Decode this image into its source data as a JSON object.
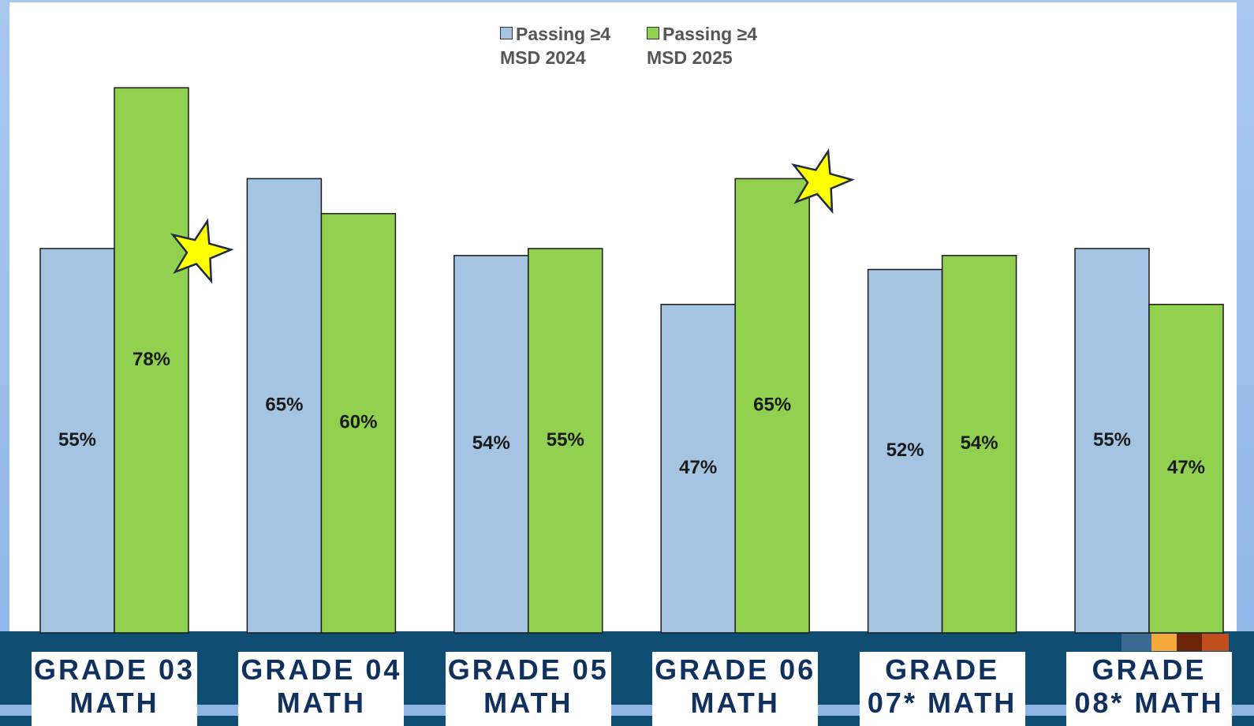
{
  "chart_data": {
    "type": "bar",
    "categories": [
      "GRADE 03 MATH",
      "GRADE 04 MATH",
      "GRADE 05 MATH",
      "GRADE 06 MATH",
      "GRADE 07* MATH",
      "GRADE 08* MATH"
    ],
    "series": [
      {
        "name": "Passing ≥4 MSD 2024",
        "color": "#a4c4e2",
        "values": [
          55,
          65,
          54,
          47,
          52,
          55
        ],
        "value_labels": [
          "55%",
          "65%",
          "54%",
          "47%",
          "52%",
          "55%"
        ]
      },
      {
        "name": "Passing ≥4 MSD 2025",
        "color": "#92d050",
        "values": [
          78,
          60,
          55,
          65,
          54,
          47
        ],
        "value_labels": [
          "78%",
          "60%",
          "55%",
          "65%",
          "54%",
          "47%"
        ]
      }
    ],
    "ylim": [
      0,
      90
    ]
  }
}
